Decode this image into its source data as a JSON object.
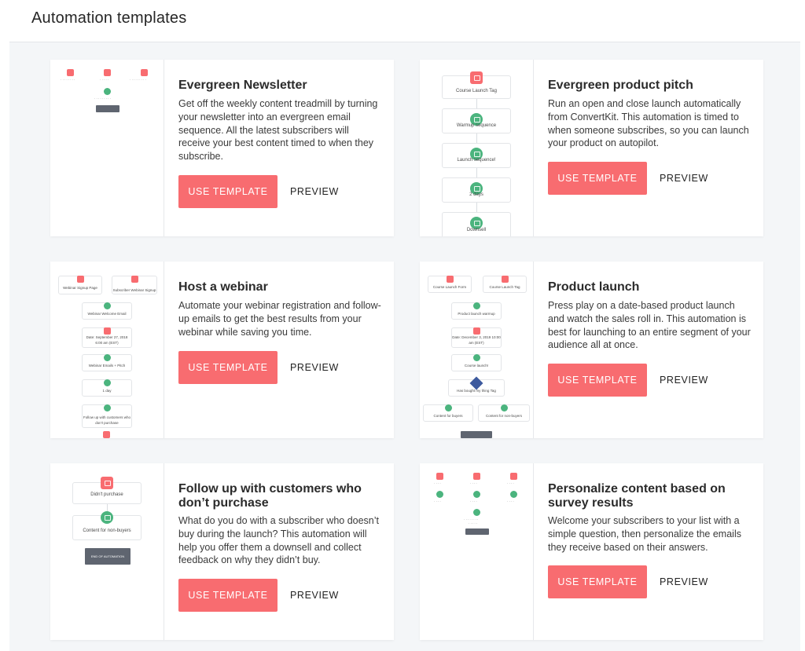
{
  "page": {
    "title": "Automation templates"
  },
  "buttons": {
    "use_template": "USE TEMPLATE",
    "preview": "PREVIEW"
  },
  "cards": [
    {
      "title": "Evergreen Newsletter",
      "description": "Get off the weekly content treadmill by turning your newsletter into an evergreen email sequence. All the latest subscribers will receive your best content timed to when they subscribe."
    },
    {
      "title": "Evergreen product pitch",
      "description": "Run an open and close launch automatically from ConvertKit. This automation is timed to when someone subscribes, so you can launch your product on autopilot.",
      "flow": [
        "Course Launch Tag",
        "Warmup sequence",
        "Launch sequence!",
        "2 days",
        "Downsell"
      ]
    },
    {
      "title": "Host a webinar",
      "description": "Automate your webinar registration and follow-up emails to get the best results from your webinar while saving you time.",
      "flow": [
        "Webinar Signup Page",
        "Subscriber Webinar Signup",
        "Webinar Welcome Email",
        "Date: September 27, 2018 6:00 am (EST)",
        "Webinar Emails + Pitch",
        "1 day",
        "Follow up with customers who don't purchase"
      ]
    },
    {
      "title": "Product launch",
      "description": "Press play on a date-based product launch and watch the sales roll in. This automation is best for launching to an entire segment of your audience all at once.",
      "flow": [
        "Course Launch Form",
        "Course Launch Tag",
        "Product launch warmup",
        "Date: December 3, 2019 10:00 am (EST)",
        "Course launch!",
        "Has bought my thing Tag",
        "Content for buyers",
        "Content for non-buyers"
      ]
    },
    {
      "title": "Follow up with customers who don’t purchase",
      "description": "What do you do with a subscriber who doesn’t buy during the launch? This automation will help you offer them a downsell and collect feedback on why they didn’t buy.",
      "flow": [
        "Didn't purchase",
        "Content for non-buyers",
        "END OF AUTOMATION"
      ]
    },
    {
      "title": "Personalize content based on survey results",
      "description": "Welcome your subscribers to your list with a simple question, then personalize the emails they receive based on their answers."
    }
  ]
}
